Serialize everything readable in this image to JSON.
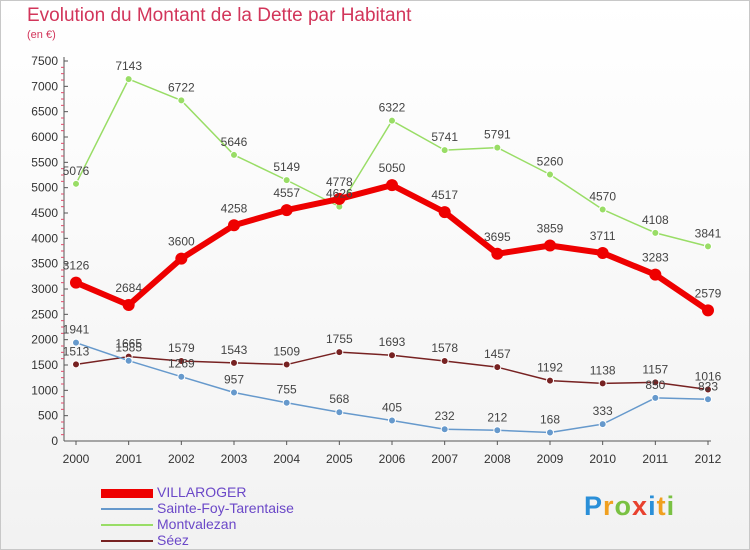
{
  "chart_data": {
    "type": "line",
    "title": "Evolution du Montant de la Dette par Habitant",
    "subtitle": "(en €)",
    "categories": [
      "2000",
      "2001",
      "2002",
      "2003",
      "2004",
      "2005",
      "2006",
      "2007",
      "2008",
      "2009",
      "2010",
      "2011",
      "2012"
    ],
    "yticks": [
      "0",
      "500",
      "1000",
      "1500",
      "2000",
      "2500",
      "3000",
      "3500",
      "4000",
      "4500",
      "5000",
      "5500",
      "6000",
      "6500",
      "7000",
      "7500"
    ],
    "ylim": [
      0,
      7500
    ],
    "grid": false,
    "legend_position": "bottom-left",
    "series": [
      {
        "name": "VILLAROGER",
        "color": "#ee0000",
        "values": [
          3126,
          2684,
          3600,
          4258,
          4557,
          4778,
          5050,
          4517,
          3695,
          3859,
          3711,
          3283,
          2579
        ],
        "labels": [
          "3126",
          "2684",
          "3600",
          "4258",
          "4557",
          "4778",
          "5050",
          "4517",
          "3695",
          "3859",
          "3711",
          "3283",
          "2579"
        ]
      },
      {
        "name": "Sainte-Foy-Tarentaise",
        "color": "#6699cc",
        "values": [
          1941,
          1585,
          1269,
          957,
          755,
          568,
          405,
          232,
          212,
          168,
          333,
          850,
          823
        ],
        "labels": [
          "1941",
          "1585",
          "1269",
          "957",
          "755",
          "568",
          "405",
          "232",
          "212",
          "168",
          "333",
          "850",
          "823"
        ]
      },
      {
        "name": "Montvalezan",
        "color": "#99dd66",
        "values": [
          5076,
          7143,
          6722,
          5646,
          5149,
          4626,
          6322,
          5741,
          5791,
          5260,
          4570,
          4108,
          3841
        ],
        "labels": [
          "5076",
          "7143",
          "6722",
          "5646",
          "5149",
          "4626",
          "6322",
          "5741",
          "5791",
          "5260",
          "4570",
          "4108",
          "3841"
        ]
      },
      {
        "name": "Séez",
        "color": "#772222",
        "values": [
          1513,
          1665,
          1579,
          1543,
          1509,
          1755,
          1693,
          1578,
          1457,
          1192,
          1138,
          1157,
          1016
        ],
        "labels": [
          "1513",
          "1665",
          "1579",
          "1543",
          "1509",
          "1755",
          "1693",
          "1578",
          "1457",
          "1192",
          "1138",
          "1157",
          "1016"
        ]
      }
    ]
  },
  "brand": {
    "letters": [
      "P",
      "r",
      "o",
      "x",
      "i",
      "t",
      "i"
    ],
    "colors": [
      "#2a8fd8",
      "#f0a020",
      "#7ac143",
      "#e8412e",
      "#2a8fd8",
      "#f0a020",
      "#7ac143"
    ]
  }
}
